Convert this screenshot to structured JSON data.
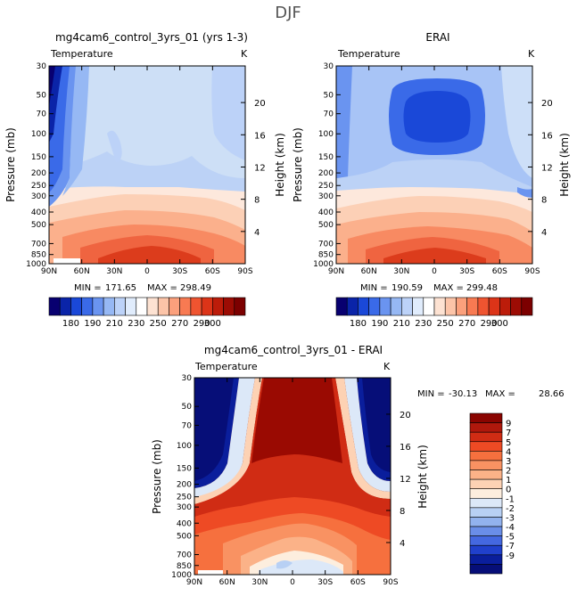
{
  "figure": {
    "title": "DJF"
  },
  "chart_data": [
    {
      "type": "heatmap",
      "panel": "top-left",
      "title": "mg4cam6_control_3yrs_01 (yrs 1-3)",
      "subtitle_left": "Temperature",
      "subtitle_right": "K",
      "ylabel": "Pressure (mb)",
      "ylabel_right": "Height (km)",
      "x_ticks": [
        "90N",
        "60N",
        "30N",
        "0",
        "30S",
        "60S",
        "90S"
      ],
      "y_ticks": [
        "30",
        "50",
        "70",
        "100",
        "150",
        "200",
        "250",
        "300",
        "400",
        "500",
        "700",
        "850",
        "1000"
      ],
      "y_ticks_right": [
        "20",
        "16",
        "12",
        "8",
        "4"
      ],
      "ylim": [
        1000,
        30
      ],
      "stats": {
        "min_label": "MIN =",
        "min": "171.65",
        "max_label": "MAX =",
        "max": "298.49"
      },
      "field_range": [
        171.65,
        298.49
      ]
    },
    {
      "type": "heatmap",
      "panel": "top-right",
      "title": "ERAI",
      "subtitle_left": "Temperature",
      "subtitle_right": "K",
      "ylabel": "Pressure (mb)",
      "ylabel_right": "Height (km)",
      "x_ticks": [
        "90N",
        "60N",
        "30N",
        "0",
        "30S",
        "60S",
        "90S"
      ],
      "y_ticks": [
        "30",
        "50",
        "70",
        "100",
        "150",
        "200",
        "250",
        "300",
        "400",
        "500",
        "700",
        "850",
        "1000"
      ],
      "y_ticks_right": [
        "20",
        "16",
        "12",
        "8",
        "4"
      ],
      "ylim": [
        1000,
        30
      ],
      "stats": {
        "min_label": "MIN =",
        "min": "190.59",
        "max_label": "MAX =",
        "max": "299.48"
      },
      "field_range": [
        190.59,
        299.48
      ]
    },
    {
      "type": "heatmap",
      "panel": "bottom",
      "title": "mg4cam6_control_3yrs_01 - ERAI",
      "subtitle_left": "Temperature",
      "subtitle_right": "K",
      "ylabel": "Pressure (mb)",
      "ylabel_right": "Height (km)",
      "x_ticks": [
        "90N",
        "60N",
        "30N",
        "0",
        "30S",
        "60S",
        "90S"
      ],
      "y_ticks": [
        "30",
        "50",
        "70",
        "100",
        "150",
        "200",
        "250",
        "300",
        "400",
        "500",
        "700",
        "850",
        "1000"
      ],
      "y_ticks_right": [
        "20",
        "16",
        "12",
        "8",
        "4"
      ],
      "ylim": [
        1000,
        30
      ],
      "stats": {
        "min_label": "MIN =",
        "min": "-30.13",
        "max_label": "MAX =",
        "max": "28.66"
      },
      "field_range": [
        -30.13,
        28.66
      ]
    }
  ],
  "colorbar_top": {
    "orientation": "horizontal",
    "levels_labeled": [
      "180",
      "190",
      "210",
      "230",
      "250",
      "270",
      "290",
      "300"
    ],
    "colors": [
      "#080070",
      "#0a24a8",
      "#1a48d8",
      "#3a6ae8",
      "#6a94f0",
      "#96b8f4",
      "#bcd2f8",
      "#e0ecfc",
      "#ffffff",
      "#fde2d2",
      "#fcc4a8",
      "#fba07c",
      "#f87a52",
      "#ef5430",
      "#dc3418",
      "#bc1c0a",
      "#9c0c04",
      "#7c0000"
    ]
  },
  "colorbar_bottom": {
    "orientation": "vertical",
    "levels": [
      "9",
      "7",
      "5",
      "4",
      "3",
      "2",
      "1",
      "0",
      "-1",
      "-2",
      "-3",
      "-4",
      "-5",
      "-7",
      "-9"
    ],
    "colors": [
      "#8a0400",
      "#b0180c",
      "#d02c14",
      "#ee4a24",
      "#f6703e",
      "#f99262",
      "#fbb288",
      "#fdd2b4",
      "#fdeede",
      "#dce8f8",
      "#b8d0f4",
      "#92b2ee",
      "#6a8ee8",
      "#4468e0",
      "#2040cc",
      "#0a1e9c",
      "#060e78"
    ]
  }
}
